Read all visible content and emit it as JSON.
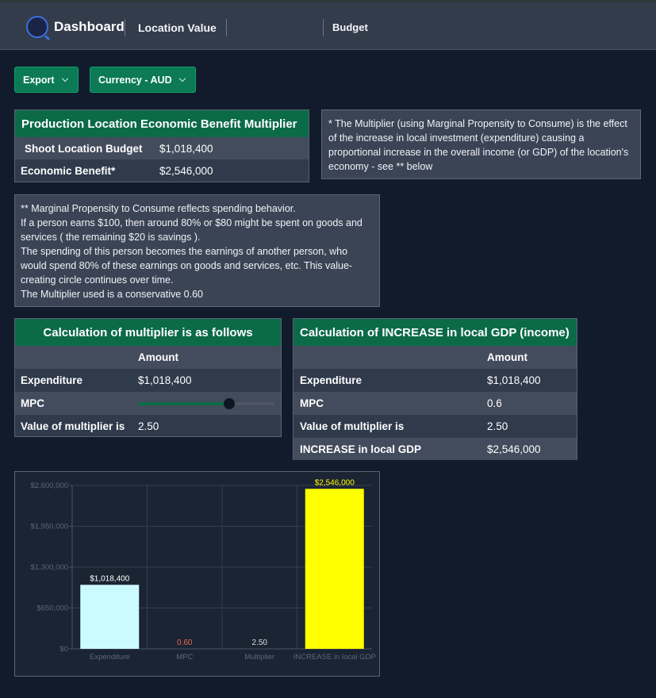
{
  "nav": {
    "brand": "Dashboard",
    "links": [
      "Location Value",
      "Budget"
    ],
    "logo_icon": "q-logo-icon"
  },
  "toolbar": {
    "export_label": "Export",
    "currency_label": "Currency - AUD"
  },
  "summary": {
    "title": "Production Location Economic Benefit Multiplier",
    "rows": [
      {
        "label": "Shoot Location Budget",
        "value": "$1,018,400"
      },
      {
        "label": "Economic Benefit*",
        "value": "$2,546,000"
      }
    ]
  },
  "note_multiplier": "* The Multiplier (using Marginal Propensity to Consume) is the effect of the increase in local investment (expenditure) causing a proportional increase in the overall income (or GDP) of the location's economy - see ** below",
  "note_mpc": {
    "lines": [
      "** Marginal Propensity to Consume reflects spending behavior.",
      "If a person earns $100, then around 80% or $80 might be spent on goods and services ( the remaining $20 is savings ).",
      "The spending of this person becomes the earnings of another person, who would spend 80% of these earnings on goods and services, etc. This value-creating circle continues over time.",
      "The Multiplier used is a conservative 0.60"
    ]
  },
  "calc_multiplier": {
    "title": "Calculation of multiplier is as follows",
    "amount_header": "Amount",
    "expenditure_label": "Expenditure",
    "expenditure_value": "$1,018,400",
    "mpc_label": "MPC",
    "mpc_slider_value": 0.6,
    "mpc_slider_min": 0,
    "mpc_slider_max": 0.9,
    "multiplier_label": "Value of multiplier is",
    "multiplier_value": "2.50"
  },
  "calc_gdp": {
    "title": "Calculation of INCREASE in local GDP (income)",
    "amount_header": "Amount",
    "rows": [
      {
        "label": "Expenditure",
        "value": "$1,018,400"
      },
      {
        "label": "MPC",
        "value": "0.6"
      },
      {
        "label": "Value of multiplier is",
        "value": "2.50"
      },
      {
        "label": "INCREASE in local GDP",
        "value": "$2,546,000"
      }
    ]
  },
  "chart_data": {
    "type": "bar",
    "categories": [
      "Expenditure",
      "MPC",
      "Multiplier",
      "INCREASE in local GDP"
    ],
    "values": [
      1018400,
      0.6,
      2.5,
      2546000
    ],
    "data_labels": [
      "$1,018,400",
      "0.60",
      "2.50",
      "$2,546,000"
    ],
    "colors": [
      "#ccfbff",
      "#ccfbff",
      "#ccfbff",
      "#ffff00"
    ],
    "label_colors": [
      "#ffffff",
      "#e06a4a",
      "#d9dde4",
      "#ffff00"
    ],
    "yticks": [
      "$0",
      "$650,000",
      "$1,300,000",
      "$1,950,000",
      "$2,600,000"
    ],
    "ylim": [
      0,
      2600000
    ],
    "grid": true
  }
}
